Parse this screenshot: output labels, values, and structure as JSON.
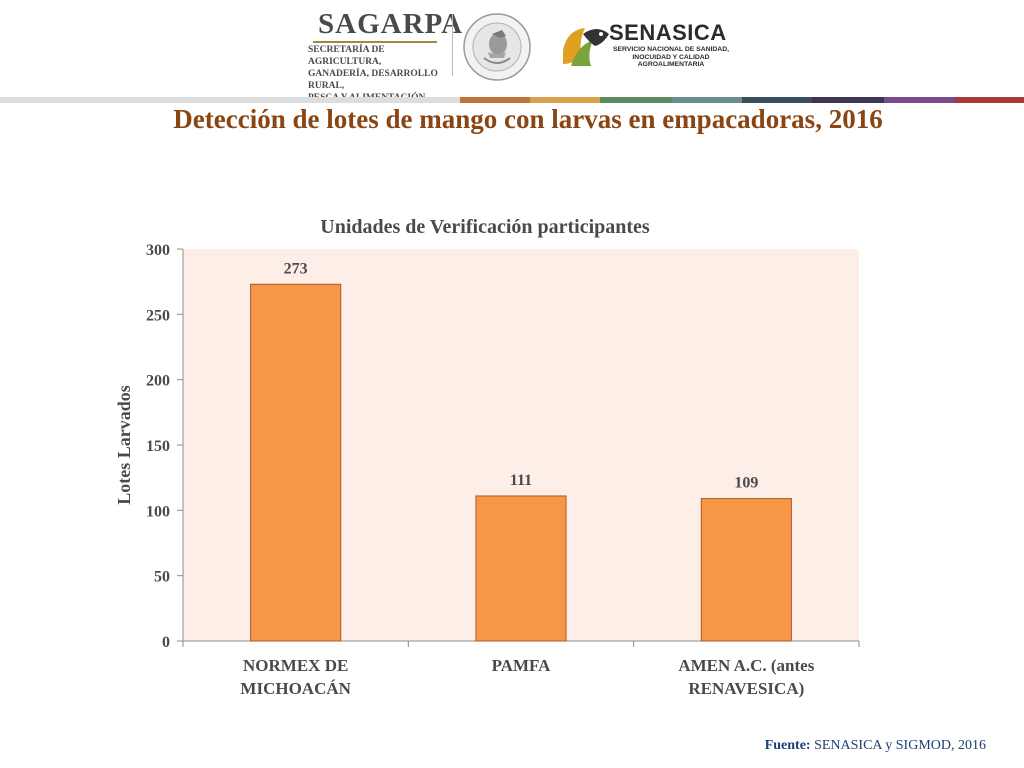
{
  "header": {
    "sagarpa_name": "SAGARPA",
    "sagarpa_sub": [
      "SECRETARÍA DE AGRICULTURA,",
      "GANADERÍA, DESARROLLO RURAL,",
      "PESCA Y ALIMENTACIÓN"
    ],
    "seal_icon": "mexican-coat-of-arms-seal",
    "senasica_name": "SENASICA",
    "senasica_sub": [
      "SERVICIO NACIONAL DE SANIDAD,",
      "INOCUIDAD Y CALIDAD",
      "AGROALIMENTARIA"
    ],
    "stripe_colors": [
      "#dddddd",
      "#c0743a",
      "#d8a24c",
      "#5c8a5e",
      "#6b8e8a",
      "#3a4f5e",
      "#3e3454",
      "#7a4b8a",
      "#a53a3a"
    ]
  },
  "slide": {
    "title": "Detección de lotes de mango con larvas en empacadoras, 2016"
  },
  "chart_data": {
    "type": "bar",
    "title": "Unidades de Verificación participantes",
    "ylabel": "Lotes Larvados",
    "xlabel": "",
    "categories": [
      [
        "NORMEX DE",
        "MICHOACÁN"
      ],
      [
        "PAMFA"
      ],
      [
        "AMEN A.C. (antes",
        "RENAVESICA)"
      ]
    ],
    "values": [
      273,
      111,
      109
    ],
    "data_labels": [
      "273",
      "111",
      "109"
    ],
    "ylim": [
      0,
      300
    ],
    "yticks": [
      0,
      50,
      100,
      150,
      200,
      250,
      300
    ],
    "grid": false,
    "colors": {
      "bar": "#f79646",
      "bar_edge": "#a85a2a",
      "plot_bg": "#fdeee8",
      "text": "#4a4a4a"
    }
  },
  "footer": {
    "label": "Fuente:",
    "text": " SENASICA y SIGMOD, 2016"
  }
}
